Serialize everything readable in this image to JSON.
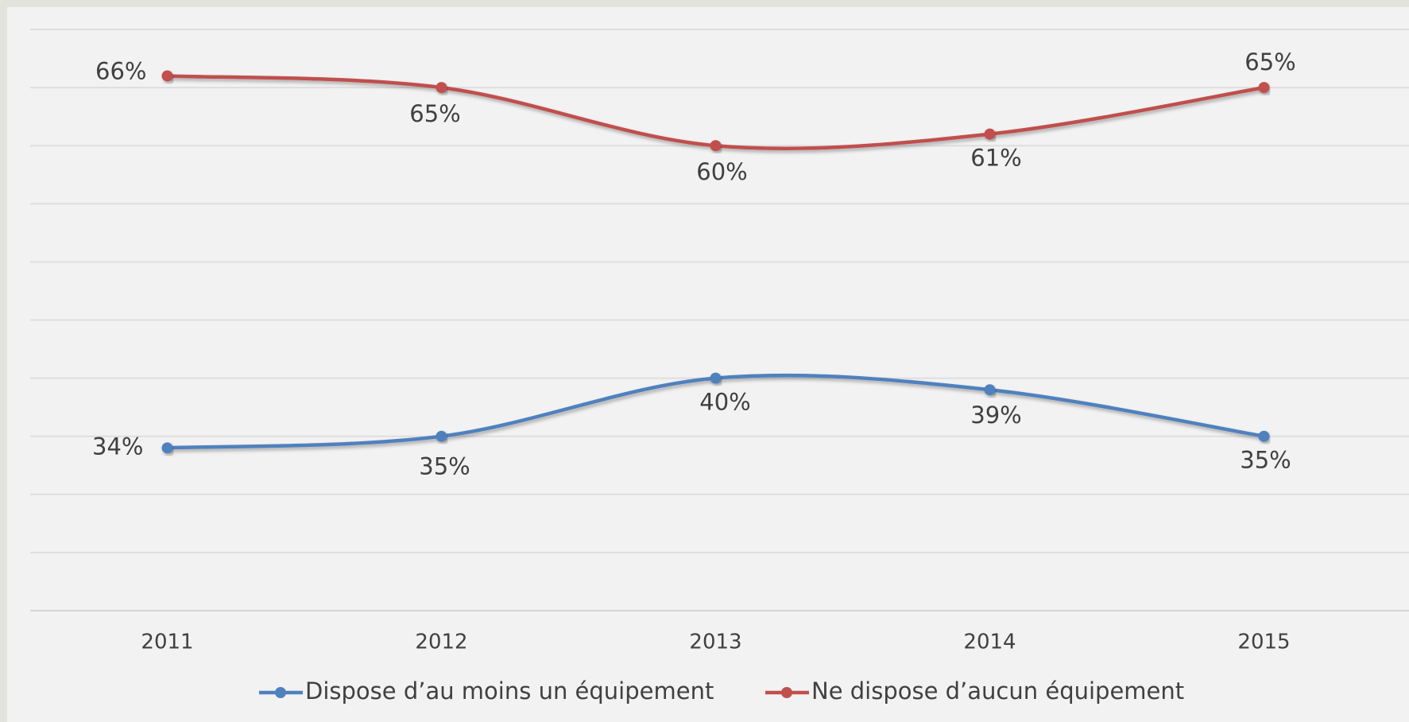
{
  "chart_data": {
    "type": "line",
    "categories": [
      "2011",
      "2012",
      "2013",
      "2014",
      "2015"
    ],
    "series": [
      {
        "name": "Dispose d’au moins un équipement",
        "color": "#4f81bd",
        "values": [
          34,
          35,
          40,
          39,
          35
        ],
        "value_labels": [
          "34%",
          "35%",
          "40%",
          "39%",
          "35%"
        ]
      },
      {
        "name": "Ne dispose d’aucun équipement",
        "color": "#c0504d",
        "values": [
          66,
          65,
          60,
          61,
          65
        ],
        "value_labels": [
          "66%",
          "65%",
          "60%",
          "61%",
          "65%"
        ]
      }
    ],
    "ylim": [
      20,
      70
    ],
    "yticks": [
      20,
      25,
      30,
      35,
      40,
      45,
      50,
      55,
      60,
      65,
      70
    ],
    "grid": true,
    "smooth": true,
    "legend": "bottom"
  }
}
